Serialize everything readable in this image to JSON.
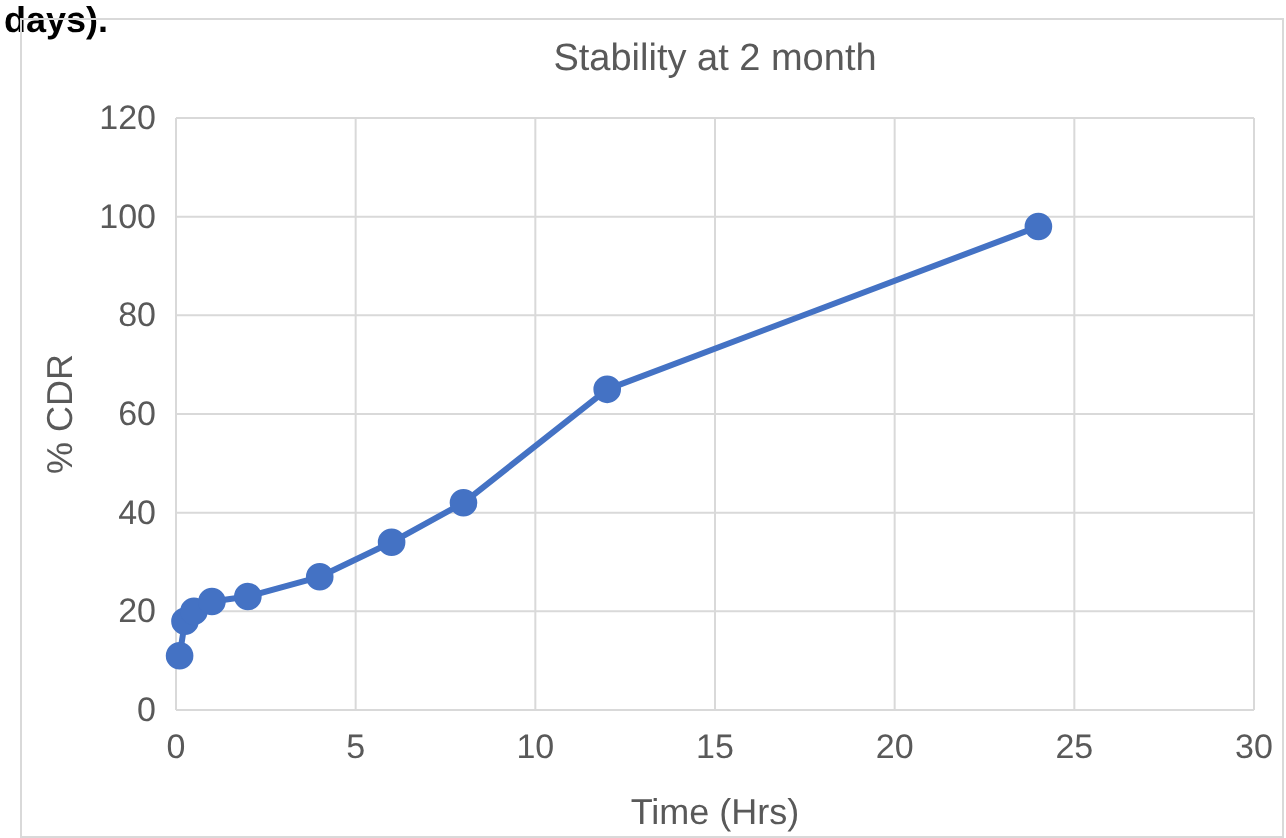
{
  "chart_data": {
    "type": "line",
    "title": "Stability at 2 month",
    "xlabel": "Time (Hrs)",
    "ylabel": "% CDR",
    "annotations": [
      "days)."
    ],
    "x": [
      0.1,
      0.25,
      0.5,
      1,
      2,
      4,
      6,
      8,
      12,
      24
    ],
    "series": [
      {
        "color": "#4472c4",
        "values": [
          11,
          18,
          20,
          22,
          23,
          27,
          34,
          42,
          65,
          98
        ]
      }
    ],
    "xlim": [
      0,
      30
    ],
    "xticks": [
      0,
      5,
      10,
      15,
      20,
      25,
      30
    ],
    "ylim": [
      0,
      120
    ],
    "yticks": [
      0,
      20,
      40,
      60,
      80,
      100,
      120
    ],
    "grid": true,
    "marker": "circle",
    "line_style": "solid"
  }
}
